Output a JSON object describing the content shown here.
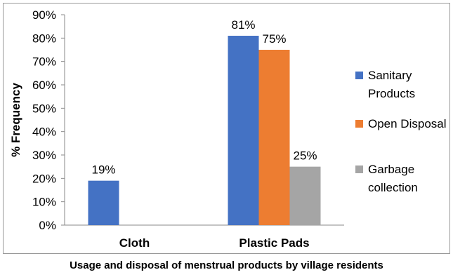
{
  "caption": "Usage and disposal of menstrual products by village residents",
  "chart_data": {
    "type": "bar",
    "categories": [
      "Cloth",
      "Plastic Pads"
    ],
    "ylabel": "% Frequency",
    "xlabel": "",
    "ylim": [
      0,
      90
    ],
    "yticks": [
      0,
      10,
      20,
      30,
      40,
      50,
      60,
      70,
      80,
      90
    ],
    "ytick_suffix": "%",
    "grid": false,
    "legend_position": "right",
    "series": [
      {
        "name": "Sanitary Products",
        "values": [
          19,
          81
        ],
        "labels": [
          "19%",
          "81%"
        ],
        "color": "#4472C4"
      },
      {
        "name": "Open Disposal",
        "values": [
          null,
          75
        ],
        "labels": [
          null,
          "75%"
        ],
        "color": "#ED7D31"
      },
      {
        "name": "Garbage collection",
        "values": [
          null,
          25
        ],
        "labels": [
          null,
          "25%"
        ],
        "color": "#A5A5A5"
      }
    ],
    "legend_lines": [
      [
        "Sanitary",
        "Products"
      ],
      [
        "Open Disposal"
      ],
      [
        "Garbage",
        "collection"
      ]
    ]
  }
}
